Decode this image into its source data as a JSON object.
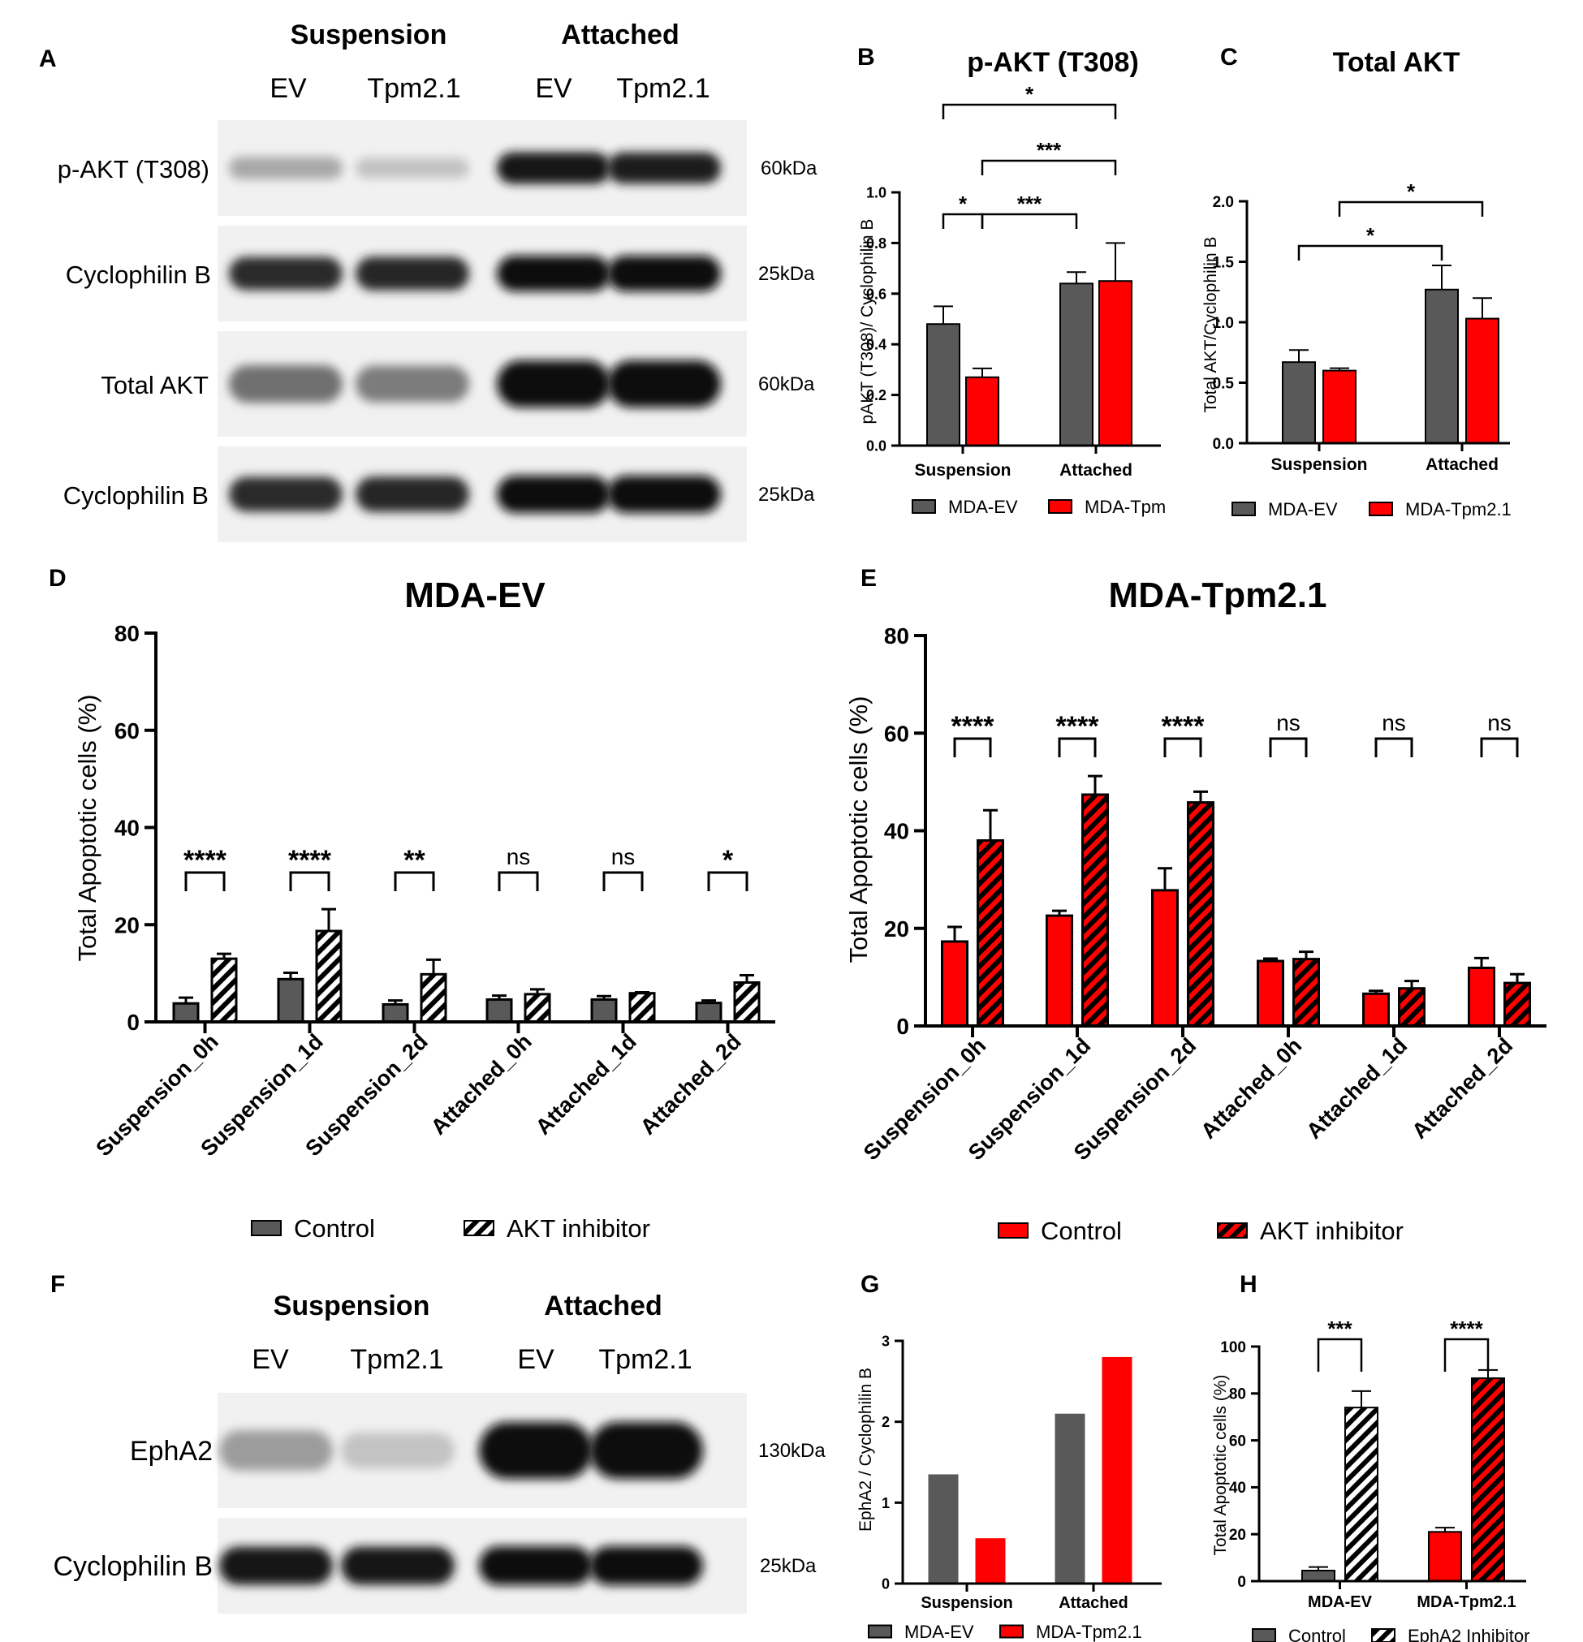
{
  "colors": {
    "gray": "#595959",
    "red": "#ff0000",
    "dark_red": "#9c0000",
    "blot_bg": "#f1f1f1"
  },
  "panels": {
    "A": {
      "letter": "A",
      "group_labels": [
        "Suspension",
        "Attached"
      ],
      "lane_labels": [
        "EV",
        "Tpm2.1",
        "EV",
        "Tpm2.1"
      ],
      "bands": [
        {
          "name": "p-AKT (T308)",
          "kda": "60kDa",
          "intensity": [
            0.3,
            0.18,
            0.95,
            0.92
          ]
        },
        {
          "name": "Cyclophilin B",
          "kda": "25kDa",
          "intensity": [
            0.85,
            0.88,
            1.0,
            1.0
          ]
        },
        {
          "name": "Total AKT",
          "kda": "60kDa",
          "intensity": [
            0.55,
            0.5,
            1.0,
            1.0
          ]
        },
        {
          "name": "Cyclophilin B",
          "kda": "25kDa",
          "intensity": [
            0.85,
            0.88,
            1.0,
            1.0
          ]
        }
      ]
    },
    "F": {
      "letter": "F",
      "group_labels": [
        "Suspension",
        "Attached"
      ],
      "lane_labels": [
        "EV",
        "Tpm2.1",
        "EV",
        "Tpm2.1"
      ],
      "bands": [
        {
          "name": "EphA2",
          "kda": "130kDa",
          "intensity": [
            0.35,
            0.18,
            1.0,
            1.0
          ]
        },
        {
          "name": "Cyclophilin B",
          "kda": "25kDa",
          "intensity": [
            0.95,
            0.95,
            1.0,
            1.0
          ]
        }
      ]
    }
  },
  "chart_data": [
    {
      "id": "B",
      "letter": "B",
      "type": "bar",
      "title": "p-AKT (T308)",
      "ylabel": "pAKT (T308)/ Cyclophilin B",
      "categories": [
        "Suspension",
        "Attached"
      ],
      "ylim": [
        0,
        1.0
      ],
      "yticks": [
        "0.0",
        "0.2",
        "0.4",
        "0.6",
        "0.8",
        "1.0"
      ],
      "series": [
        {
          "name": "MDA-EV",
          "values": [
            0.48,
            0.64
          ],
          "errors": [
            0.07,
            0.045
          ]
        },
        {
          "name": "MDA-Tpm",
          "values": [
            0.27,
            0.65
          ],
          "errors": [
            0.035,
            0.15
          ]
        }
      ],
      "significance": [
        "*",
        "***",
        "*",
        "***"
      ]
    },
    {
      "id": "C",
      "letter": "C",
      "type": "bar",
      "title": "Total AKT",
      "ylabel": "Total AKT/Cyclophilin B",
      "categories": [
        "Suspension",
        "Attached"
      ],
      "ylim": [
        0,
        2.0
      ],
      "yticks": [
        "0.0",
        "0.5",
        "1.0",
        "1.5",
        "2.0"
      ],
      "series": [
        {
          "name": "MDA-EV",
          "values": [
            0.67,
            1.27
          ],
          "errors": [
            0.1,
            0.2
          ]
        },
        {
          "name": "MDA-Tpm2.1",
          "values": [
            0.6,
            1.03
          ],
          "errors": [
            0.02,
            0.17
          ]
        }
      ],
      "significance": [
        "*",
        "*"
      ]
    },
    {
      "id": "D",
      "letter": "D",
      "type": "bar",
      "title": "MDA-EV",
      "ylabel": "Total Apoptotic cells (%)",
      "categories": [
        "Suspension_0h",
        "Suspension_1d",
        "Suspension_2d",
        "Attached_0h",
        "Attached_1d",
        "Attached_2d"
      ],
      "ylim": [
        0,
        80
      ],
      "yticks": [
        "0",
        "20",
        "40",
        "60",
        "80"
      ],
      "series": [
        {
          "name": "Control",
          "values": [
            3.8,
            8.8,
            3.6,
            4.6,
            4.6,
            3.9
          ],
          "errors": [
            1.2,
            1.3,
            0.8,
            0.8,
            0.7,
            0.5
          ]
        },
        {
          "name": "AKT inhibitor",
          "values": [
            13.0,
            18.7,
            9.8,
            5.7,
            5.9,
            8.1
          ],
          "errors": [
            1.0,
            4.5,
            3.0,
            1.0,
            0.2,
            1.5
          ]
        }
      ],
      "significance": [
        "****",
        "****",
        "**",
        "ns",
        "ns",
        "*"
      ]
    },
    {
      "id": "E",
      "letter": "E",
      "type": "bar",
      "title": "MDA-Tpm2.1",
      "ylabel": "Total Apoptotic cells (%)",
      "categories": [
        "Suspension_0h",
        "Suspension_1d",
        "Suspension_2d",
        "Attached_0h",
        "Attached_1d",
        "Attached_2d"
      ],
      "ylim": [
        0,
        80
      ],
      "yticks": [
        "0",
        "20",
        "40",
        "60",
        "80"
      ],
      "series": [
        {
          "name": "Control",
          "values": [
            17.3,
            22.6,
            27.8,
            13.3,
            6.6,
            11.9
          ],
          "errors": [
            3.0,
            1.0,
            4.5,
            0.5,
            0.6,
            2.0
          ]
        },
        {
          "name": "AKT inhibitor",
          "values": [
            38.0,
            47.4,
            45.8,
            13.7,
            7.7,
            8.8
          ],
          "errors": [
            6.2,
            3.8,
            2.2,
            1.5,
            1.5,
            1.8
          ]
        }
      ],
      "significance": [
        "****",
        "****",
        "****",
        "ns",
        "ns",
        "ns"
      ]
    },
    {
      "id": "G",
      "letter": "G",
      "type": "bar",
      "title": "",
      "ylabel": "EphA2 / Cyclophilin B",
      "categories": [
        "Suspension",
        "Attached"
      ],
      "ylim": [
        0,
        3
      ],
      "yticks": [
        "0",
        "1",
        "2",
        "3"
      ],
      "series": [
        {
          "name": "MDA-EV",
          "values": [
            1.35,
            2.1
          ]
        },
        {
          "name": "MDA-Tpm2.1",
          "values": [
            0.56,
            2.8
          ]
        }
      ]
    },
    {
      "id": "H",
      "letter": "H",
      "type": "bar",
      "title": "",
      "ylabel": "Total Apoptotic cells (%)",
      "categories": [
        "MDA-EV",
        "MDA-Tpm2.1"
      ],
      "ylim": [
        0,
        100
      ],
      "yticks": [
        "0",
        "20",
        "40",
        "60",
        "80",
        "100"
      ],
      "series": [
        {
          "name": "Control",
          "values": [
            4.5,
            21.0
          ],
          "errors": [
            1.5,
            1.8
          ]
        },
        {
          "name": "EphA2 Inhibitor",
          "values": [
            74.0,
            86.5
          ],
          "errors": [
            7.0,
            3.5
          ]
        }
      ],
      "significance": [
        "***",
        "****"
      ]
    }
  ]
}
